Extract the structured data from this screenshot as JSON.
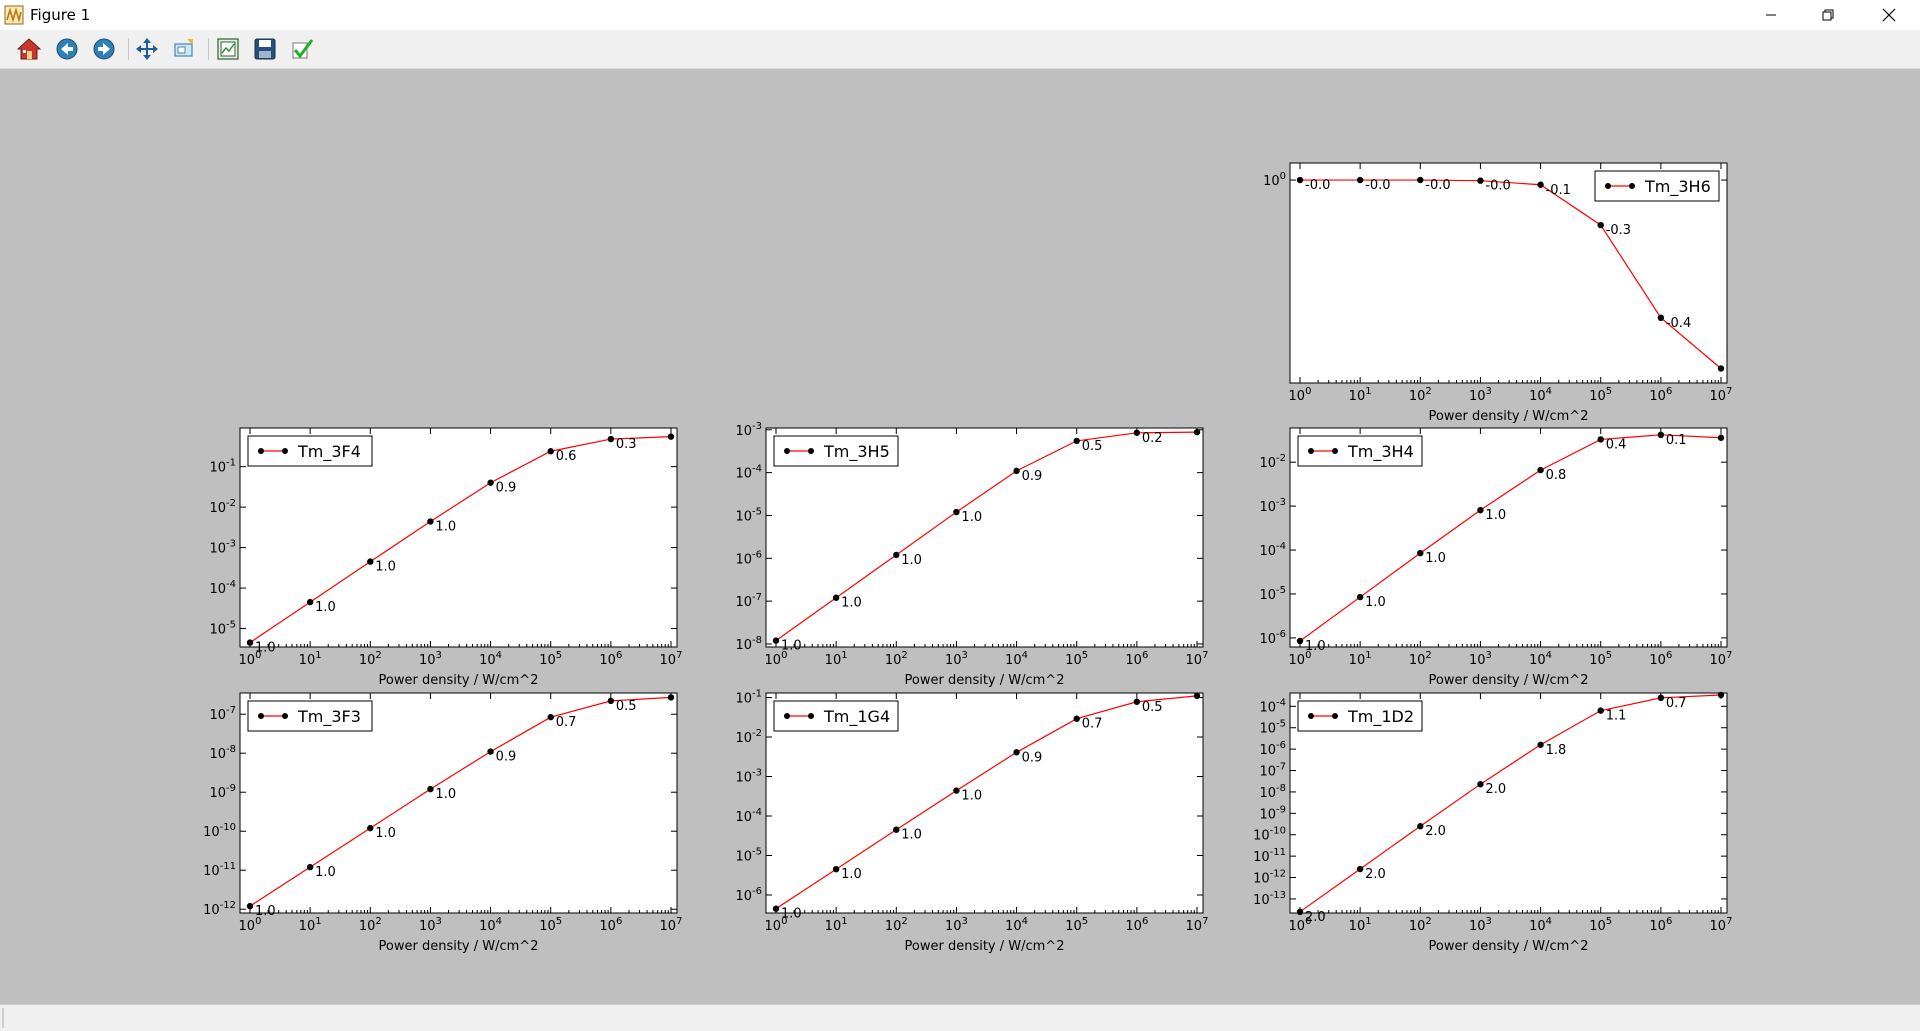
{
  "window": {
    "title": "Figure 1"
  },
  "toolbar": {
    "buttons": [
      {
        "name": "home-button",
        "icon": "home-icon"
      },
      {
        "name": "back-button",
        "icon": "back-arrow-icon"
      },
      {
        "name": "forward-button",
        "icon": "forward-arrow-icon"
      },
      {
        "name": "pan-button",
        "icon": "move-icon"
      },
      {
        "name": "zoom-button",
        "icon": "zoom-rect-icon"
      },
      {
        "name": "subplots-button",
        "icon": "subplots-icon"
      },
      {
        "name": "save-button",
        "icon": "floppy-disk-icon"
      },
      {
        "name": "edit-button",
        "icon": "checkmark-icon"
      }
    ]
  },
  "colors": {
    "line": "#ff0000",
    "marker": "#000000",
    "background": "#bfbfbf",
    "axes": "#ffffff"
  },
  "chart_data": [
    {
      "id": "tm-3h6",
      "type": "line",
      "xscale": "log",
      "yscale": "log",
      "x": [
        1,
        10,
        100,
        1000,
        10000,
        100000,
        1000000,
        10000000
      ],
      "series": [
        {
          "name": "Tm_3H6",
          "values": [
            1.0,
            1.0,
            1.0,
            0.99,
            0.93,
            0.5,
            0.12,
            0.055
          ]
        }
      ],
      "annotations": [
        "-0.0",
        "-0.0",
        "-0.0",
        "-0.0",
        "-0.1",
        "-0.3",
        "-0.4",
        ""
      ],
      "xlabel": "Power density / W/cm^2",
      "ylabel": "",
      "xlim": [
        1,
        10000000
      ],
      "ylim": [
        0.044,
        1.3
      ],
      "yticks": [
        0
      ],
      "legend": "upper right",
      "grid": false
    },
    {
      "id": "tm-3f4",
      "type": "line",
      "xscale": "log",
      "yscale": "log",
      "x": [
        1,
        10,
        100,
        1000,
        10000,
        100000,
        1000000,
        10000000
      ],
      "series": [
        {
          "name": "Tm_3F4",
          "values": [
            4.5e-06,
            4.5e-05,
            0.00045,
            0.0044,
            0.04,
            0.24,
            0.48,
            0.55
          ]
        }
      ],
      "annotations": [
        "1.0",
        "1.0",
        "1.0",
        "1.0",
        "0.9",
        "0.6",
        "0.3",
        ""
      ],
      "xlabel": "Power density / W/cm^2",
      "ylabel": "",
      "xlim": [
        1,
        10000000
      ],
      "ylim": [
        3.5e-06,
        0.9
      ],
      "yticks": [
        -5,
        -4,
        -3,
        -2,
        -1
      ],
      "legend": "upper left",
      "grid": false
    },
    {
      "id": "tm-3h5",
      "type": "line",
      "xscale": "log",
      "yscale": "log",
      "x": [
        1,
        10,
        100,
        1000,
        10000,
        100000,
        1000000,
        10000000
      ],
      "series": [
        {
          "name": "Tm_3H5",
          "values": [
            1.2e-08,
            1.2e-07,
            1.2e-06,
            1.2e-05,
            0.00011,
            0.00055,
            0.00085,
            0.00088
          ]
        }
      ],
      "annotations": [
        "1.0",
        "1.0",
        "1.0",
        "1.0",
        "0.9",
        "0.5",
        "0.2",
        ""
      ],
      "xlabel": "Power density / W/cm^2",
      "ylabel": "",
      "xlim": [
        1,
        10000000
      ],
      "ylim": [
        8.5e-09,
        0.0011
      ],
      "yticks": [
        -8,
        -7,
        -6,
        -5,
        -4,
        -3
      ],
      "legend": "upper left",
      "grid": false
    },
    {
      "id": "tm-3h4",
      "type": "line",
      "xscale": "log",
      "yscale": "log",
      "x": [
        1,
        10,
        100,
        1000,
        10000,
        100000,
        1000000,
        10000000
      ],
      "series": [
        {
          "name": "Tm_3H4",
          "values": [
            8.5e-07,
            8.5e-06,
            8.5e-05,
            0.00081,
            0.0066,
            0.033,
            0.042,
            0.036
          ]
        }
      ],
      "annotations": [
        "1.0",
        "1.0",
        "1.0",
        "1.0",
        "0.8",
        "0.4",
        "0.1",
        ""
      ],
      "xlabel": "Power density / W/cm^2",
      "ylabel": "",
      "xlim": [
        1,
        10000000
      ],
      "ylim": [
        6.2e-07,
        0.06
      ],
      "yticks": [
        -6,
        -5,
        -4,
        -3,
        -2
      ],
      "legend": "upper left",
      "grid": false
    },
    {
      "id": "tm-3f3",
      "type": "line",
      "xscale": "log",
      "yscale": "log",
      "x": [
        1,
        10,
        100,
        1000,
        10000,
        100000,
        1000000,
        10000000
      ],
      "series": [
        {
          "name": "Tm_3F3",
          "values": [
            1.2e-12,
            1.2e-11,
            1.2e-10,
            1.2e-09,
            1.1e-08,
            8.4e-08,
            2.2e-07,
            2.7e-07
          ]
        }
      ],
      "annotations": [
        "1.0",
        "1.0",
        "1.0",
        "1.0",
        "0.9",
        "0.7",
        "0.5",
        ""
      ],
      "xlabel": "Power density / W/cm^2",
      "ylabel": "",
      "xlim": [
        1,
        10000000
      ],
      "ylim": [
        8e-13,
        3.5e-07
      ],
      "yticks": [
        -12,
        -11,
        -10,
        -9,
        -8,
        -7
      ],
      "legend": "upper left",
      "grid": false
    },
    {
      "id": "tm-1g4",
      "type": "line",
      "xscale": "log",
      "yscale": "log",
      "x": [
        1,
        10,
        100,
        1000,
        10000,
        100000,
        1000000,
        10000000
      ],
      "series": [
        {
          "name": "Tm_1G4",
          "values": [
            4.5e-07,
            4.5e-06,
            4.5e-05,
            0.00044,
            0.0041,
            0.029,
            0.078,
            0.11
          ]
        }
      ],
      "annotations": [
        "1.0",
        "1.0",
        "1.0",
        "1.0",
        "0.9",
        "0.7",
        "0.5",
        ""
      ],
      "xlabel": "Power density / W/cm^2",
      "ylabel": "",
      "xlim": [
        1,
        10000000
      ],
      "ylim": [
        3.5e-07,
        0.13
      ],
      "yticks": [
        -6,
        -5,
        -4,
        -3,
        -2,
        -1
      ],
      "legend": "upper left",
      "grid": false
    },
    {
      "id": "tm-1d2",
      "type": "line",
      "xscale": "log",
      "yscale": "log",
      "x": [
        1,
        10,
        100,
        1000,
        10000,
        100000,
        1000000,
        10000000
      ],
      "series": [
        {
          "name": "Tm_1D2",
          "values": [
            2.5e-14,
            2.5e-12,
            2.5e-10,
            2.3e-08,
            1.6e-06,
            6.3e-05,
            0.00025,
            0.00034
          ]
        }
      ],
      "annotations": [
        "2.0",
        "2.0",
        "2.0",
        "2.0",
        "1.8",
        "1.1",
        "0.7",
        ""
      ],
      "xlabel": "Power density / W/cm^2",
      "ylabel": "",
      "xlim": [
        1,
        10000000
      ],
      "ylim": [
        2.2e-14,
        0.00042
      ],
      "yticks": [
        -13,
        -12,
        -11,
        -10,
        -9,
        -8,
        -7,
        -6,
        -5,
        -4
      ],
      "legend": "upper left",
      "grid": false
    }
  ]
}
